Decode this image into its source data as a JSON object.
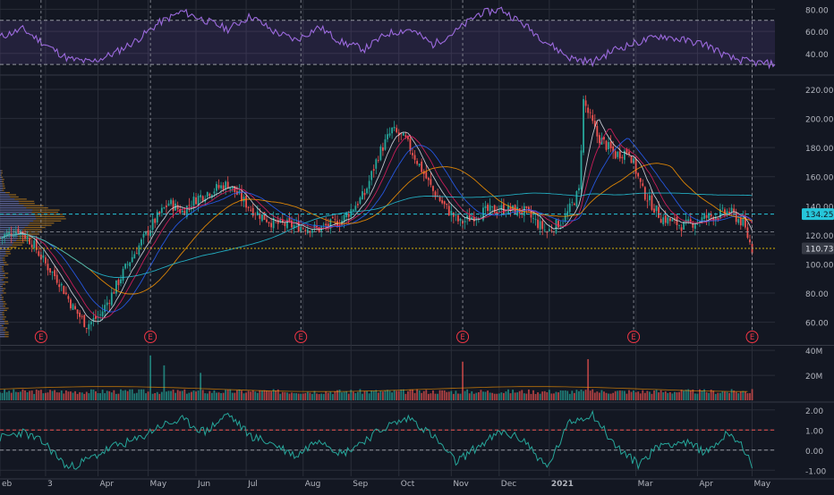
{
  "colors": {
    "background": "#131722",
    "grid": "#2a2e39",
    "axis_text": "#b2b5be",
    "up": "#26a69a",
    "down": "#ef5350",
    "rsi": "#9c6ade",
    "rsi_band": "#7e57c2",
    "osc": "#26a69a",
    "price_tag_cyan": "#26c6da",
    "price_tag_grey": "#363a45",
    "earnings": "#f23645"
  },
  "chart_data": [
    {
      "type": "line",
      "panel": "rsi",
      "ylim": [
        22,
        86
      ],
      "y_ticks": [
        "80.00",
        "60.00",
        "40.00"
      ],
      "y_tick_values": [
        80,
        60,
        40
      ],
      "levels": [
        70,
        30
      ],
      "x": [
        0,
        10,
        20,
        30,
        40,
        50,
        60,
        70,
        80,
        90,
        100,
        110,
        120,
        130,
        140,
        150,
        160,
        170,
        180,
        190,
        200,
        210,
        220,
        230,
        240,
        250,
        260,
        270,
        280,
        290,
        300,
        310,
        320,
        330,
        340
      ],
      "values": [
        55,
        62,
        48,
        35,
        32,
        40,
        52,
        68,
        78,
        70,
        62,
        74,
        60,
        52,
        64,
        50,
        44,
        58,
        62,
        48,
        60,
        76,
        80,
        66,
        50,
        36,
        32,
        44,
        50,
        56,
        52,
        48,
        36,
        32,
        30
      ]
    },
    {
      "type": "candlestick",
      "panel": "price",
      "ylim": [
        45,
        228
      ],
      "y_ticks": [
        "220.00",
        "200.00",
        "180.00",
        "160.00",
        "140.00",
        "120.00",
        "100.00",
        "80.00",
        "60.00"
      ],
      "y_tick_values": [
        220,
        200,
        180,
        160,
        140,
        120,
        100,
        80,
        60
      ],
      "x_ticks": [
        "eb",
        "3",
        "Apr",
        "May",
        "Jun",
        "Jul",
        "Aug",
        "Sep",
        "Oct",
        "Nov",
        "Dec",
        "2021",
        "Mar",
        "Apr",
        "May"
      ],
      "x_tick_positions": [
        0,
        20,
        43,
        65,
        86,
        108,
        133,
        154,
        175,
        198,
        219,
        241,
        279,
        306,
        330
      ],
      "price_labels": [
        {
          "text": "134.25",
          "value": 134.25,
          "style": "cyan"
        },
        {
          "text": "110.73",
          "value": 110.73,
          "style": "grey"
        }
      ],
      "earnings_marker": "E",
      "earnings_positions": [
        18,
        66,
        132,
        203,
        278,
        330
      ],
      "close_path_x": [
        0,
        8,
        14,
        20,
        26,
        32,
        38,
        44,
        50,
        56,
        62,
        68,
        74,
        80,
        86,
        92,
        100,
        110,
        120,
        130,
        140,
        150,
        160,
        166,
        172,
        178,
        184,
        190,
        196,
        202,
        210,
        220,
        230,
        240,
        248,
        254,
        256,
        262,
        270,
        276,
        282,
        290,
        300,
        310,
        320,
        326,
        330
      ],
      "close_path_y": [
        118,
        124,
        115,
        100,
        88,
        70,
        58,
        65,
        82,
        100,
        115,
        130,
        142,
        136,
        145,
        150,
        155,
        138,
        128,
        126,
        124,
        130,
        148,
        175,
        192,
        185,
        168,
        150,
        138,
        128,
        135,
        138,
        136,
        122,
        132,
        150,
        212,
        188,
        175,
        178,
        150,
        132,
        126,
        132,
        136,
        128,
        110
      ]
    },
    {
      "type": "bar",
      "panel": "volume",
      "ylim": [
        0,
        43
      ],
      "y_ticks": [
        "40M",
        "20M"
      ],
      "y_tick_values": [
        40,
        20
      ],
      "spikes": [
        {
          "x": 66,
          "value": 36
        },
        {
          "x": 72,
          "value": 28
        },
        {
          "x": 88,
          "value": 22
        },
        {
          "x": 203,
          "value": 31
        },
        {
          "x": 258,
          "value": 33
        },
        {
          "x": 330,
          "value": 9
        }
      ],
      "baseline": 5
    },
    {
      "type": "line",
      "panel": "oscillator",
      "ylim": [
        -1.3,
        2.3
      ],
      "y_ticks": [
        "2.00",
        "1.00",
        "0.00",
        "-1.00"
      ],
      "y_tick_values": [
        2,
        1,
        0,
        -1
      ],
      "levels": [
        1,
        0
      ],
      "x": [
        0,
        10,
        20,
        30,
        40,
        50,
        60,
        70,
        80,
        90,
        100,
        110,
        120,
        130,
        140,
        150,
        160,
        170,
        180,
        190,
        200,
        210,
        220,
        230,
        240,
        250,
        260,
        270,
        280,
        290,
        300,
        310,
        320,
        326,
        330
      ],
      "values": [
        0.6,
        0.9,
        0.3,
        -0.9,
        -0.4,
        0.2,
        0.5,
        1.2,
        1.5,
        0.9,
        1.8,
        0.7,
        0.3,
        -0.3,
        0.6,
        -0.2,
        0.5,
        1.2,
        1.6,
        0.7,
        -0.6,
        0.2,
        0.9,
        0.5,
        -0.9,
        1.4,
        1.8,
        0.2,
        -0.7,
        0.3,
        0.4,
        -0.1,
        0.9,
        0.2,
        -0.9
      ]
    }
  ]
}
